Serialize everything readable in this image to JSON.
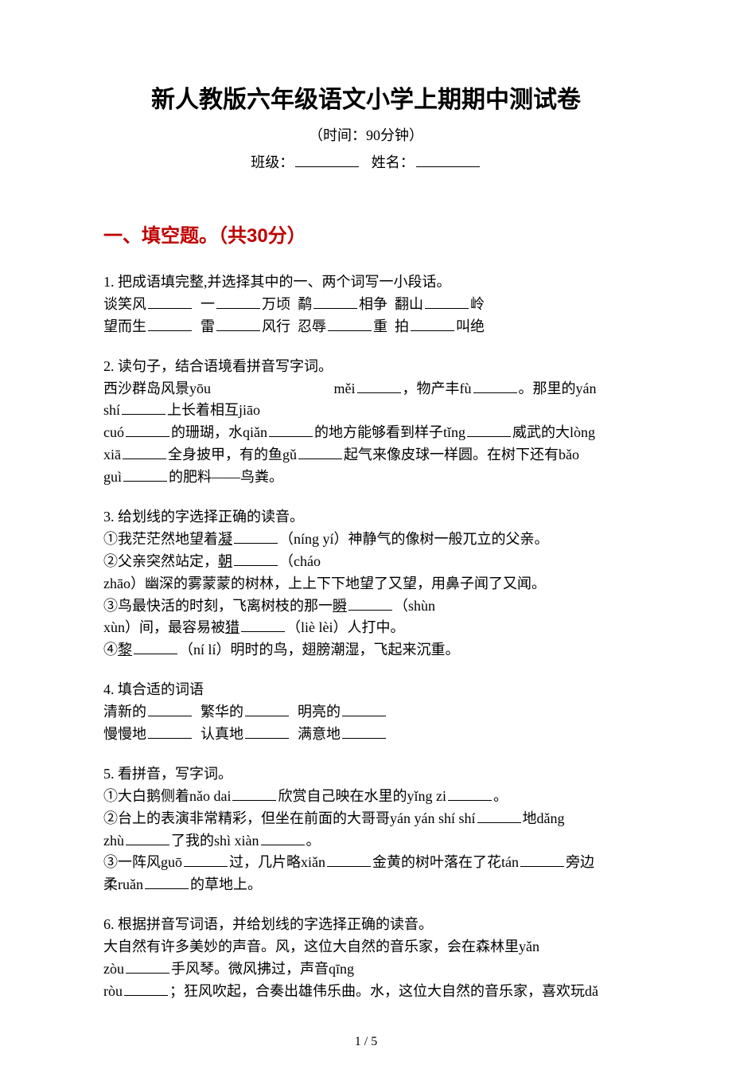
{
  "colors": {
    "text": "#000000",
    "accent": "#bf0000",
    "background": "#ffffff",
    "rule": "#000000"
  },
  "typography": {
    "title_family": "SimHei",
    "body_family": "SimSun",
    "title_size_pt": 22,
    "section_size_pt": 18,
    "body_size_pt": 13
  },
  "header": {
    "title": "新人教版六年级语文小学上期期中测试卷",
    "time_label": "（时间：90分钟）",
    "class_label": "班级：",
    "name_label": "姓名："
  },
  "section1": {
    "heading": "一、填空题。（共30分）"
  },
  "q1": {
    "num": "1.",
    "lead": "把成语填完整,并选择其中的一、两个词写一小段话。",
    "parts": {
      "a1": "谈笑风",
      "a2": "一",
      "a3": "万顷",
      "a4": "鹬",
      "a5": "相争",
      "a6": "翻山",
      "a7": "岭",
      "b1": "望而生",
      "b2": "雷",
      "b3": "风行",
      "b4": "忍辱",
      "b5": "重",
      "b6": "拍",
      "b7": "叫绝"
    }
  },
  "q2": {
    "num": "2.",
    "lead": "读句子，结合语境看拼音写字词。",
    "t1": "西沙群岛风景yōu",
    "t2": "měi",
    "t2b": "，物产丰fù",
    "t2c": "。那里的yán",
    "t3a": " shí",
    "t3b": "上长着相互jiāo",
    "t4a": " cuó",
    "t4b": "的珊瑚，水qiǎn",
    "t4c": "的地方能够看到样子tǐng",
    "t4d": "威武的大lòng",
    "t5a": " xiā",
    "t5b": "全身披甲，有的鱼gǔ",
    "t5c": "起气来像皮球一样圆。在树下还有bǎo",
    "t6a": " guì",
    "t6b": "的肥料——鸟粪。"
  },
  "q3": {
    "num": "3.",
    "lead": "给划线的字选择正确的读音。",
    "l1a": "①我茫茫然地望着",
    "l1u": "凝",
    "l1b": "（níng  yí）神静气的像树一般兀立的父亲。",
    "l2a": "②父亲突然站定，",
    "l2u": "朝",
    "l2b": "（cháo",
    "l2c": " zhāo）幽深的雾蒙蒙的树林，上上下下地望了又望，用鼻子闻了又闻。",
    "l3a": "③鸟最快活的时刻，飞离树枝的那一",
    "l3u": "瞬",
    "l3b": "（shùn",
    "l3c": " xùn）间，最容易被",
    "l3u2": "猎",
    "l3d": "（liè  lèi）人打中。",
    "l4a": "④",
    "l4u": "黎",
    "l4b": "（ní  lí）明时的鸟，翅膀潮湿，飞起来沉重。"
  },
  "q4": {
    "num": "4.",
    "lead": "填合适的词语",
    "r1a": "清新的",
    "r1b": "繁华的",
    "r1c": "明亮的",
    "r2a": "慢慢地",
    "r2b": "认真地",
    "r2c": "满意地"
  },
  "q5": {
    "num": "5.",
    "lead": "看拼音，写字词。",
    "l1a": "①大白鹅侧着nǎo  dai",
    "l1b": "欣赏自己映在水里的yǐng  zi",
    "l1c": "。",
    "l2a": "②台上的表演非常精彩，但坐在前面的大哥哥yán   yán   shí   shí",
    "l2b": "地dǎng",
    "l2c": " zhù",
    "l2d": "了我的shì  xiàn",
    "l2e": "。",
    "l3a": "③一阵风guō",
    "l3b": "过，几片略xiǎn",
    "l3c": "金黄的树叶落在了花tán",
    "l3d": "旁边",
    "l3e": "柔ruǎn",
    "l3f": "的草地上。"
  },
  "q6": {
    "num": "6.",
    "lead": "根据拼音写词语，并给划线的字选择正确的读音。",
    "l1": "大自然有许多美妙的声音。风，这位大自然的音乐家，会在森林里yǎn",
    "l2a": " zòu",
    "l2b": "手风琴。微风拂过，声音qīng",
    "l3a": " ròu",
    "l3b": "；狂风吹起，合奏出雄伟乐曲。水，这位大自然的音乐家，喜欢玩dǎ"
  },
  "footer": {
    "page": "1 / 5"
  }
}
